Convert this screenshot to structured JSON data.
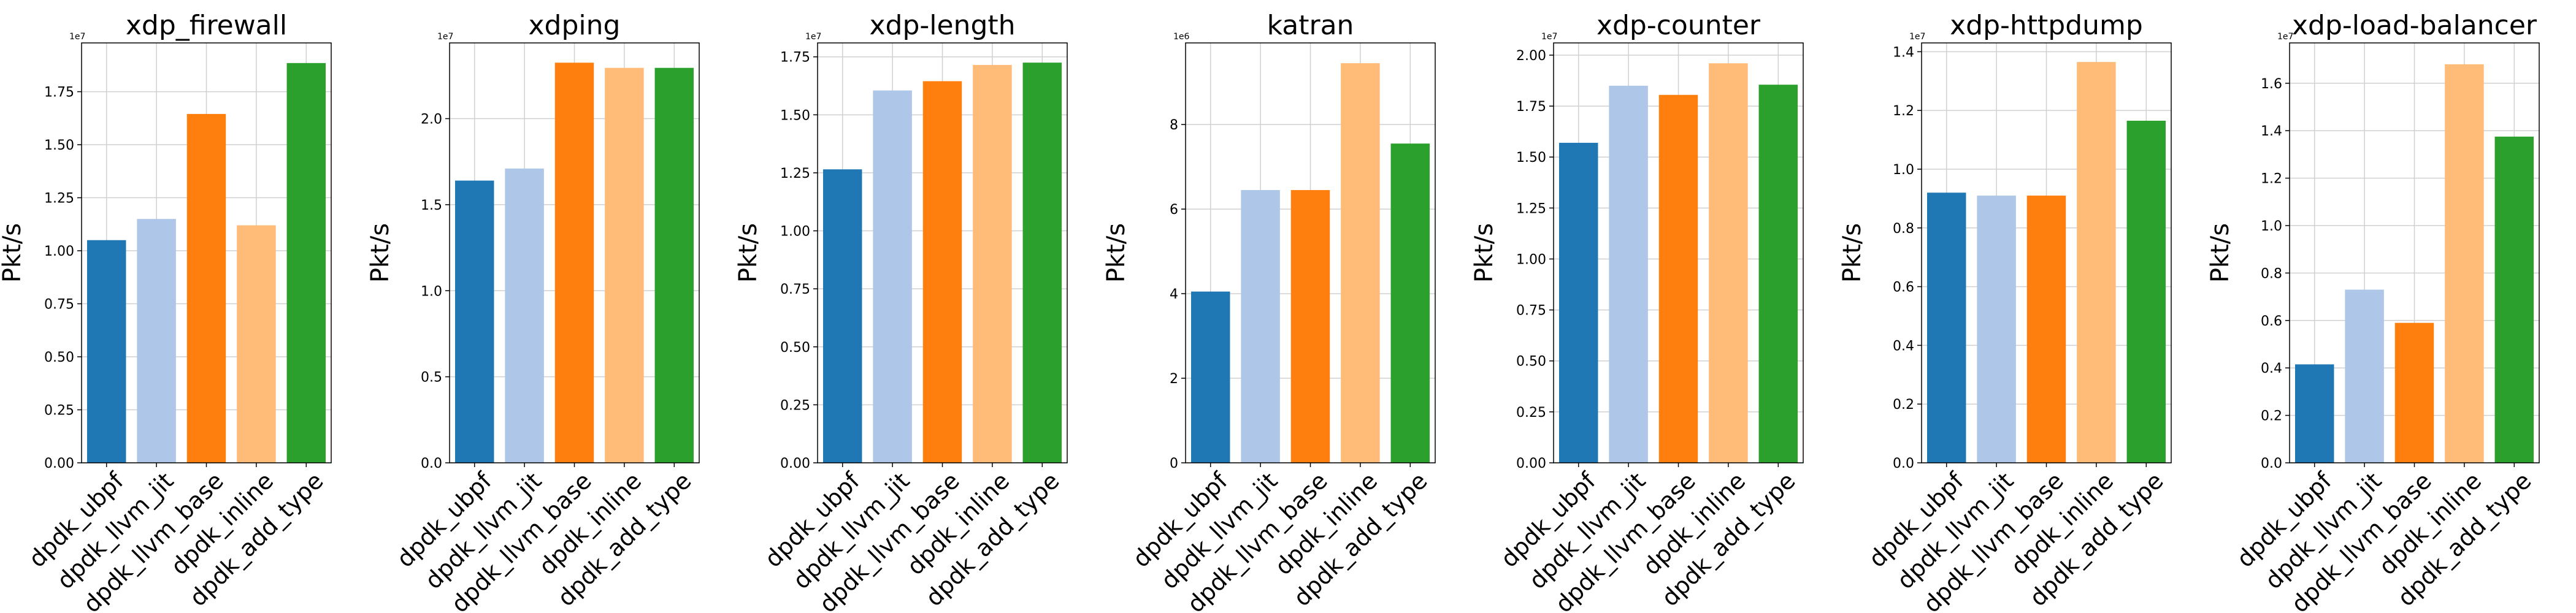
{
  "colors": {
    "dpdk_ubpf": "#1f77b4",
    "dpdk_llvm_jit": "#aec7e8",
    "dpdk_llvm_base": "#ff7f0e",
    "dpdk_inline": "#ffbb78",
    "dpdk_add_type": "#2ca02c"
  },
  "chart_data": [
    {
      "type": "bar",
      "title": "xdp_firewall",
      "ylabel": "Pkt/s",
      "offset_label": "1e7",
      "categories": [
        "dpdk_ubpf",
        "dpdk_llvm_jit",
        "dpdk_llvm_base",
        "dpdk_inline",
        "dpdk_add_type"
      ],
      "values": [
        1.05,
        1.15,
        1.645,
        1.12,
        1.885
      ],
      "yticks": [
        0.0,
        0.25,
        0.5,
        0.75,
        1.0,
        1.25,
        1.5,
        1.75
      ],
      "ytick_labels": [
        "0.00",
        "0.25",
        "0.50",
        "0.75",
        "1.00",
        "1.25",
        "1.50",
        "1.75"
      ],
      "ylim": [
        0,
        1.98
      ],
      "grid": true
    },
    {
      "type": "bar",
      "title": "xdping",
      "ylabel": "Pkt/s",
      "offset_label": "1e7",
      "categories": [
        "dpdk_ubpf",
        "dpdk_llvm_jit",
        "dpdk_llvm_base",
        "dpdk_inline",
        "dpdk_add_type"
      ],
      "values": [
        1.64,
        1.71,
        2.325,
        2.295,
        2.295
      ],
      "yticks": [
        0.0,
        0.5,
        1.0,
        1.5,
        2.0
      ],
      "ytick_labels": [
        "0.0",
        "0.5",
        "1.0",
        "1.5",
        "2.0"
      ],
      "ylim": [
        0,
        2.44
      ],
      "grid": true
    },
    {
      "type": "bar",
      "title": "xdp-length",
      "ylabel": "Pkt/s",
      "offset_label": "1e7",
      "categories": [
        "dpdk_ubpf",
        "dpdk_llvm_jit",
        "dpdk_llvm_base",
        "dpdk_inline",
        "dpdk_add_type"
      ],
      "values": [
        1.265,
        1.605,
        1.645,
        1.715,
        1.725
      ],
      "yticks": [
        0.0,
        0.25,
        0.5,
        0.75,
        1.0,
        1.25,
        1.5,
        1.75
      ],
      "ytick_labels": [
        "0.00",
        "0.25",
        "0.50",
        "0.75",
        "1.00",
        "1.25",
        "1.50",
        "1.75"
      ],
      "ylim": [
        0,
        1.81
      ],
      "grid": true
    },
    {
      "type": "bar",
      "title": "katran",
      "ylabel": "Pkt/s",
      "offset_label": "1e6",
      "categories": [
        "dpdk_ubpf",
        "dpdk_llvm_jit",
        "dpdk_llvm_base",
        "dpdk_inline",
        "dpdk_add_type"
      ],
      "values": [
        4.05,
        6.45,
        6.45,
        9.45,
        7.55
      ],
      "yticks": [
        0,
        2,
        4,
        6,
        8
      ],
      "ytick_labels": [
        "0",
        "2",
        "4",
        "6",
        "8"
      ],
      "ylim": [
        0,
        9.93
      ],
      "grid": true
    },
    {
      "type": "bar",
      "title": "xdp-counter",
      "ylabel": "Pkt/s",
      "offset_label": "1e7",
      "categories": [
        "dpdk_ubpf",
        "dpdk_llvm_jit",
        "dpdk_llvm_base",
        "dpdk_inline",
        "dpdk_add_type"
      ],
      "values": [
        1.57,
        1.85,
        1.805,
        1.96,
        1.855
      ],
      "yticks": [
        0.0,
        0.25,
        0.5,
        0.75,
        1.0,
        1.25,
        1.5,
        1.75,
        2.0
      ],
      "ytick_labels": [
        "0.00",
        "0.25",
        "0.50",
        "0.75",
        "1.00",
        "1.25",
        "1.50",
        "1.75",
        "2.00"
      ],
      "ylim": [
        0,
        2.06
      ],
      "grid": true
    },
    {
      "type": "bar",
      "title": "xdp-httpdump",
      "ylabel": "Pkt/s",
      "offset_label": "1e7",
      "categories": [
        "dpdk_ubpf",
        "dpdk_llvm_jit",
        "dpdk_llvm_base",
        "dpdk_inline",
        "dpdk_add_type"
      ],
      "values": [
        0.92,
        0.91,
        0.91,
        1.365,
        1.165
      ],
      "yticks": [
        0.0,
        0.2,
        0.4,
        0.6,
        0.8,
        1.0,
        1.2,
        1.4
      ],
      "ytick_labels": [
        "0.0",
        "0.2",
        "0.4",
        "0.6",
        "0.8",
        "1.0",
        "1.2",
        "1.4"
      ],
      "ylim": [
        0,
        1.43
      ],
      "grid": true
    },
    {
      "type": "bar",
      "title": "xdp-load-balancer",
      "ylabel": "Pkt/s",
      "offset_label": "1e7",
      "categories": [
        "dpdk_ubpf",
        "dpdk_llvm_jit",
        "dpdk_llvm_base",
        "dpdk_inline",
        "dpdk_add_type"
      ],
      "values": [
        0.415,
        0.73,
        0.59,
        1.68,
        1.375
      ],
      "yticks": [
        0.0,
        0.2,
        0.4,
        0.6,
        0.8,
        1.0,
        1.2,
        1.4,
        1.6
      ],
      "ytick_labels": [
        "0.0",
        "0.2",
        "0.4",
        "0.6",
        "0.8",
        "1.0",
        "1.2",
        "1.4",
        "1.6"
      ],
      "ylim": [
        0,
        1.77
      ],
      "grid": true
    }
  ]
}
